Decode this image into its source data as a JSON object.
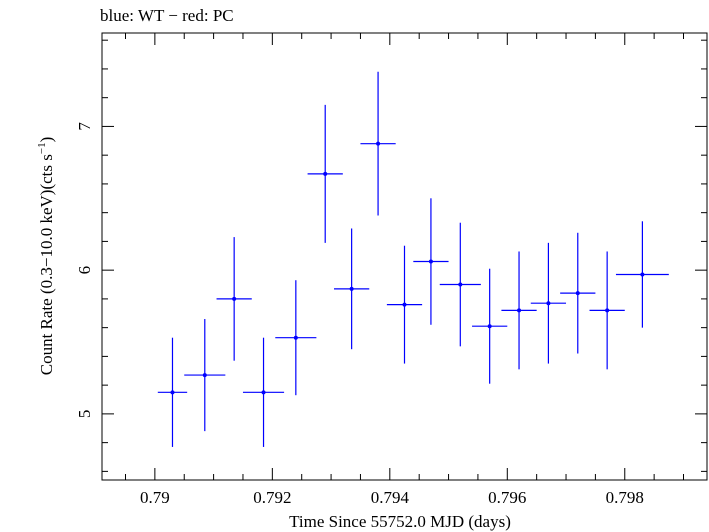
{
  "chart_data": {
    "type": "scatter",
    "title": "blue: WT − red: PC",
    "xlabel": "Time Since 55752.0 MJD (days)",
    "ylabel_main": "Count Rate (0.3−10.0 keV)(cts s",
    "ylabel_sup": "−1",
    "ylabel_close": ")",
    "xlim": [
      0.7891,
      0.7994
    ],
    "ylim": [
      4.54,
      7.65
    ],
    "xticks": [
      0.79,
      0.792,
      0.794,
      0.796,
      0.798
    ],
    "xtick_labels": [
      "0.79",
      "0.792",
      "0.794",
      "0.796",
      "0.798"
    ],
    "yticks": [
      5,
      6,
      7
    ],
    "ytick_labels": [
      "5",
      "6",
      "7"
    ],
    "grid": false,
    "series_color": "#0000ff",
    "series": [
      {
        "points": [
          {
            "x": 0.7903,
            "xerr": 0.00025,
            "y": 5.15,
            "yerr": 0.38
          },
          {
            "x": 0.79085,
            "xerr": 0.00035,
            "y": 5.27,
            "yerr": 0.39
          },
          {
            "x": 0.79135,
            "xerr": 0.0003,
            "y": 5.8,
            "yerr": 0.43
          },
          {
            "x": 0.79185,
            "xerr": 0.00035,
            "y": 5.15,
            "yerr": 0.38
          },
          {
            "x": 0.7924,
            "xerr": 0.00035,
            "y": 5.53,
            "yerr": 0.4
          },
          {
            "x": 0.7929,
            "xerr": 0.0003,
            "y": 6.67,
            "yerr": 0.48
          },
          {
            "x": 0.79335,
            "xerr": 0.0003,
            "y": 5.87,
            "yerr": 0.42
          },
          {
            "x": 0.7938,
            "xerr": 0.0003,
            "y": 6.88,
            "yerr": 0.5
          },
          {
            "x": 0.79425,
            "xerr": 0.0003,
            "y": 5.76,
            "yerr": 0.41
          },
          {
            "x": 0.7947,
            "xerr": 0.0003,
            "y": 6.06,
            "yerr": 0.44
          },
          {
            "x": 0.7952,
            "xerr": 0.00035,
            "y": 5.9,
            "yerr": 0.43
          },
          {
            "x": 0.7957,
            "xerr": 0.0003,
            "y": 5.61,
            "yerr": 0.4
          },
          {
            "x": 0.7962,
            "xerr": 0.0003,
            "y": 5.72,
            "yerr": 0.41
          },
          {
            "x": 0.7967,
            "xerr": 0.0003,
            "y": 5.77,
            "yerr": 0.42
          },
          {
            "x": 0.7972,
            "xerr": 0.0003,
            "y": 5.84,
            "yerr": 0.42
          },
          {
            "x": 0.7977,
            "xerr": 0.0003,
            "y": 5.72,
            "yerr": 0.41
          },
          {
            "x": 0.7983,
            "xerr": 0.00045,
            "y": 5.97,
            "yerr": 0.37
          }
        ]
      }
    ]
  }
}
